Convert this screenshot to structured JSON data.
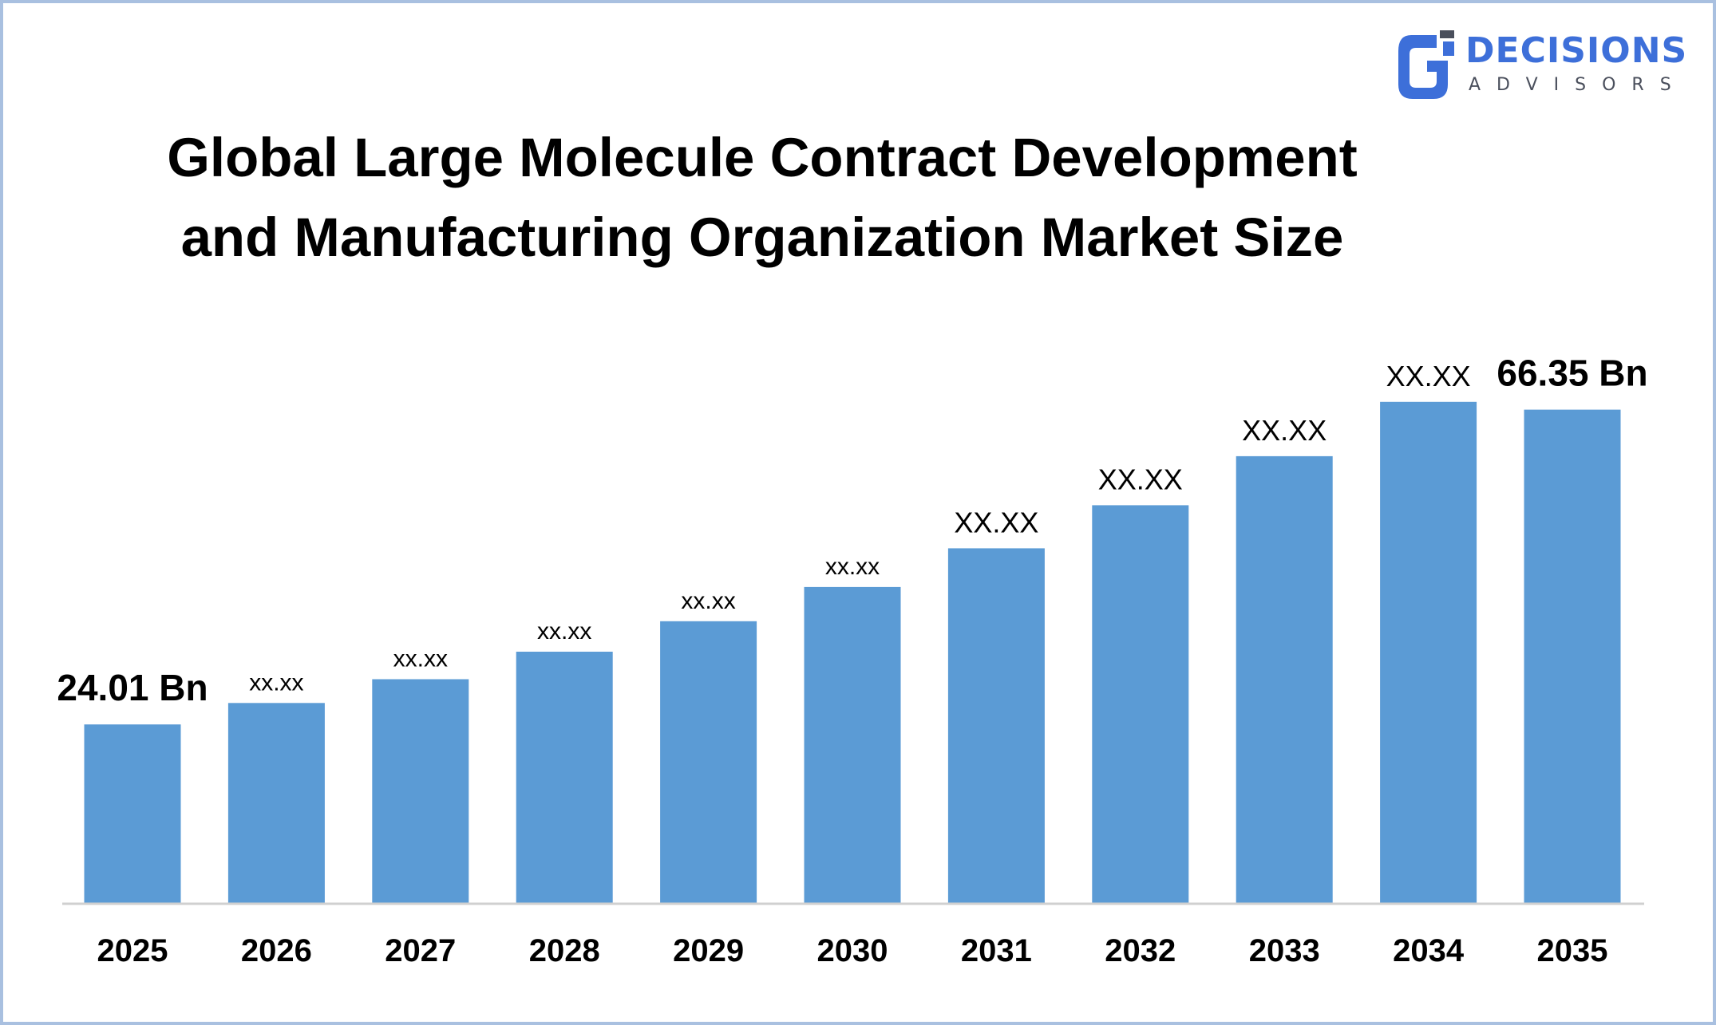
{
  "logo": {
    "name": "DECISIONS",
    "tagline": "ADVISORS",
    "color": "#3d6fd9"
  },
  "chart_data": {
    "type": "bar",
    "title": "Global Large Molecule Contract Development and Manufacturing Organization Market Size",
    "title_lines": [
      "Global Large Molecule Contract Development",
      "and Manufacturing Organization Market Size"
    ],
    "categories": [
      "2025",
      "2026",
      "2027",
      "2028",
      "2029",
      "2030",
      "2031",
      "2032",
      "2033",
      "2034",
      "2035"
    ],
    "values": [
      24.01,
      26.9,
      30.1,
      33.8,
      37.9,
      42.5,
      47.7,
      53.5,
      60.1,
      67.4,
      66.35
    ],
    "data_labels": [
      "24.01 Bn",
      "xx.xx",
      "xx.xx",
      "xx.xx",
      "xx.xx",
      "xx.xx",
      "XX.XX",
      "XX.XX",
      "XX.XX",
      "XX.XX",
      "66.35 Bn"
    ],
    "xlabel": "",
    "ylabel": "",
    "ylim": [
      0,
      100
    ],
    "grid": false,
    "legend": "none",
    "bar_color": "#5b9bd5"
  }
}
